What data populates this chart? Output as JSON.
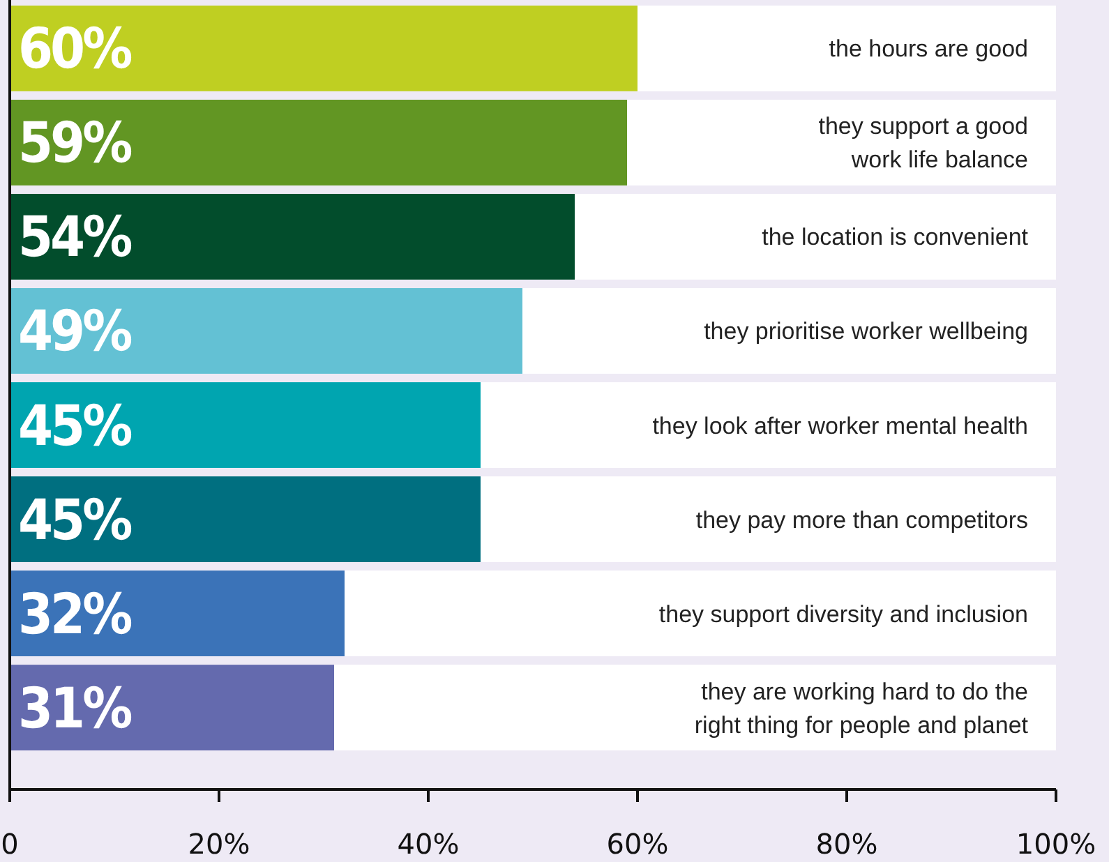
{
  "chart_data": {
    "type": "bar",
    "orientation": "horizontal",
    "categories": [
      "the hours are good",
      "they support a good work life balance",
      "the location is convenient",
      "they prioritise worker wellbeing",
      "they look after worker mental health",
      "they pay more than competitors",
      "they support diversity and inclusion",
      "they are working hard to do the right thing for people and planet"
    ],
    "values": [
      60,
      59,
      54,
      49,
      45,
      45,
      32,
      31
    ],
    "colors": [
      "#bfcf22",
      "#629623",
      "#024d2c",
      "#63c1d4",
      "#00a5b0",
      "#006f80",
      "#3b73b8",
      "#646aae"
    ],
    "value_labels": [
      "60%",
      "59%",
      "54%",
      "49%",
      "45%",
      "45%",
      "32%",
      "31%"
    ],
    "xlim": [
      0,
      100
    ],
    "xticks": [
      0,
      {
        "value": 20,
        "label": "20%"
      },
      {
        "value": 40,
        "label": "40%"
      },
      {
        "value": 60,
        "label": "60%"
      },
      {
        "value": 80,
        "label": "80%"
      },
      {
        "value": 100,
        "label": "100%"
      }
    ]
  }
}
